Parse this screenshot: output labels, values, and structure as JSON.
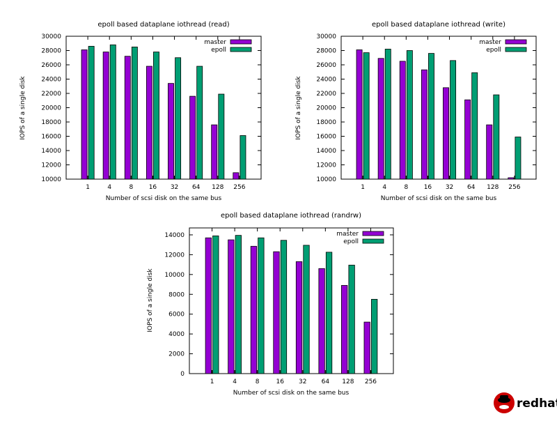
{
  "colors": {
    "master": "#9400d3",
    "epoll": "#009e73"
  },
  "chart_data": [
    {
      "type": "bar",
      "title": "epoll based dataplane iothread (read)",
      "xlabel": "Number of scsi disk on the same bus",
      "ylabel": "IOPS of a single disk",
      "ylim": [
        10000,
        30000
      ],
      "yticks": [
        10000,
        12000,
        14000,
        16000,
        18000,
        20000,
        22000,
        24000,
        26000,
        28000,
        30000
      ],
      "categories": [
        "1",
        "4",
        "8",
        "16",
        "32",
        "64",
        "128",
        "256"
      ],
      "legend_position": "top-right",
      "series": [
        {
          "name": "master",
          "values": [
            28100,
            27800,
            27200,
            25800,
            23400,
            21600,
            17600,
            10900
          ]
        },
        {
          "name": "epoll",
          "values": [
            28600,
            28800,
            28500,
            27800,
            27000,
            25800,
            21900,
            16100
          ]
        }
      ]
    },
    {
      "type": "bar",
      "title": "epoll based dataplane iothread (write)",
      "xlabel": "Number of scsi disk on the same bus",
      "ylabel": "IOPS of a single disk",
      "ylim": [
        10000,
        30000
      ],
      "yticks": [
        10000,
        12000,
        14000,
        16000,
        18000,
        20000,
        22000,
        24000,
        26000,
        28000,
        30000
      ],
      "categories": [
        "1",
        "4",
        "8",
        "16",
        "32",
        "64",
        "128",
        "256"
      ],
      "legend_position": "top-right",
      "series": [
        {
          "name": "master",
          "values": [
            28100,
            26900,
            26500,
            25300,
            22800,
            21100,
            17600,
            10200
          ]
        },
        {
          "name": "epoll",
          "values": [
            27700,
            28200,
            28000,
            27600,
            26600,
            24900,
            21800,
            15900
          ]
        }
      ]
    },
    {
      "type": "bar",
      "title": "epoll based dataplane iothread (randrw)",
      "xlabel": "Number of scsi disk on the same bus",
      "ylabel": "IOPS of a single disk",
      "ylim": [
        0,
        14700
      ],
      "yticks": [
        0,
        2000,
        4000,
        6000,
        8000,
        10000,
        12000,
        14000
      ],
      "categories": [
        "1",
        "4",
        "8",
        "16",
        "32",
        "64",
        "128",
        "256"
      ],
      "legend_position": "top-right",
      "series": [
        {
          "name": "master",
          "values": [
            13700,
            13500,
            12850,
            12300,
            11300,
            10600,
            8900,
            5200
          ]
        },
        {
          "name": "epoll",
          "values": [
            13900,
            13950,
            13700,
            13450,
            12950,
            12250,
            10950,
            7500
          ]
        }
      ]
    }
  ],
  "logo": {
    "text": "redhat."
  }
}
